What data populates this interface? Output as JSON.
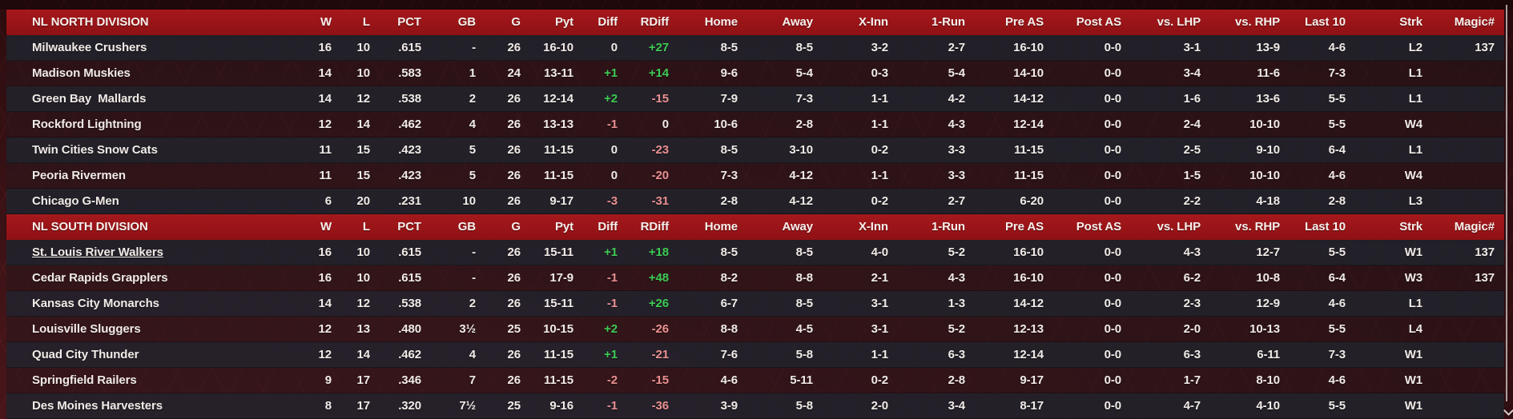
{
  "colors": {
    "accent_light": "#a6181c",
    "accent_dark": "#8e1114",
    "positive": "#3ecb55",
    "negative": "#ea9090",
    "text": "#f1ebe7"
  },
  "table": {
    "columns": [
      {
        "key": "w",
        "label": "W"
      },
      {
        "key": "l",
        "label": "L"
      },
      {
        "key": "pct",
        "label": "PCT"
      },
      {
        "key": "gb",
        "label": "GB"
      },
      {
        "key": "g",
        "label": "G"
      },
      {
        "key": "pyt",
        "label": "Pyt"
      },
      {
        "key": "diff",
        "label": "Diff"
      },
      {
        "key": "rdiff",
        "label": "RDiff"
      },
      {
        "key": "home",
        "label": "Home"
      },
      {
        "key": "away",
        "label": "Away"
      },
      {
        "key": "xinn",
        "label": "X-Inn"
      },
      {
        "key": "onerun",
        "label": "1-Run"
      },
      {
        "key": "preas",
        "label": "Pre AS"
      },
      {
        "key": "postas",
        "label": "Post AS"
      },
      {
        "key": "vslhp",
        "label": "vs. LHP"
      },
      {
        "key": "vsrhp",
        "label": "vs. RHP"
      },
      {
        "key": "last10",
        "label": "Last 10"
      },
      {
        "key": "strk",
        "label": "Strk"
      },
      {
        "key": "magic",
        "label": "Magic#"
      }
    ],
    "divisions": [
      {
        "name": "NL NORTH DIVISION",
        "teams": [
          {
            "name": "Milwaukee Crushers",
            "values": [
              "16",
              "10",
              ".615",
              "-",
              "26",
              "16-10",
              "0",
              "+27",
              "8-5",
              "8-5",
              "3-2",
              "2-7",
              "16-10",
              "0-0",
              "3-1",
              "13-9",
              "4-6",
              "L2",
              "137"
            ]
          },
          {
            "name": "Madison Muskies",
            "values": [
              "14",
              "10",
              ".583",
              "1",
              "24",
              "13-11",
              "+1",
              "+14",
              "9-6",
              "5-4",
              "0-3",
              "5-4",
              "14-10",
              "0-0",
              "3-4",
              "11-6",
              "7-3",
              "L1",
              ""
            ]
          },
          {
            "name": "Green Bay  Mallards",
            "values": [
              "14",
              "12",
              ".538",
              "2",
              "26",
              "12-14",
              "+2",
              "-15",
              "7-9",
              "7-3",
              "1-1",
              "4-2",
              "14-12",
              "0-0",
              "1-6",
              "13-6",
              "5-5",
              "L1",
              ""
            ]
          },
          {
            "name": "Rockford Lightning",
            "values": [
              "12",
              "14",
              ".462",
              "4",
              "26",
              "13-13",
              "-1",
              "0",
              "10-6",
              "2-8",
              "1-1",
              "4-3",
              "12-14",
              "0-0",
              "2-4",
              "10-10",
              "5-5",
              "W4",
              ""
            ]
          },
          {
            "name": "Twin Cities Snow Cats",
            "values": [
              "11",
              "15",
              ".423",
              "5",
              "26",
              "11-15",
              "0",
              "-23",
              "8-5",
              "3-10",
              "0-2",
              "3-3",
              "11-15",
              "0-0",
              "2-5",
              "9-10",
              "6-4",
              "L1",
              ""
            ]
          },
          {
            "name": "Peoria Rivermen",
            "values": [
              "11",
              "15",
              ".423",
              "5",
              "26",
              "11-15",
              "0",
              "-20",
              "7-3",
              "4-12",
              "1-1",
              "3-3",
              "11-15",
              "0-0",
              "1-5",
              "10-10",
              "4-6",
              "W4",
              ""
            ]
          },
          {
            "name": "Chicago G-Men",
            "values": [
              "6",
              "20",
              ".231",
              "10",
              "26",
              "9-17",
              "-3",
              "-31",
              "2-8",
              "4-12",
              "0-2",
              "2-7",
              "6-20",
              "0-0",
              "2-2",
              "4-18",
              "2-8",
              "L3",
              ""
            ]
          }
        ]
      },
      {
        "name": "NL SOUTH DIVISION",
        "teams": [
          {
            "name": "St. Louis River Walkers",
            "highlight": true,
            "values": [
              "16",
              "10",
              ".615",
              "-",
              "26",
              "15-11",
              "+1",
              "+18",
              "8-5",
              "8-5",
              "4-0",
              "5-2",
              "16-10",
              "0-0",
              "4-3",
              "12-7",
              "5-5",
              "W1",
              "137"
            ]
          },
          {
            "name": "Cedar Rapids Grapplers",
            "values": [
              "16",
              "10",
              ".615",
              "-",
              "26",
              "17-9",
              "-1",
              "+48",
              "8-2",
              "8-8",
              "2-1",
              "4-3",
              "16-10",
              "0-0",
              "6-2",
              "10-8",
              "6-4",
              "W3",
              "137"
            ]
          },
          {
            "name": "Kansas City Monarchs",
            "values": [
              "14",
              "12",
              ".538",
              "2",
              "26",
              "15-11",
              "-1",
              "+26",
              "6-7",
              "8-5",
              "3-1",
              "1-3",
              "14-12",
              "0-0",
              "2-3",
              "12-9",
              "4-6",
              "L1",
              ""
            ]
          },
          {
            "name": "Louisville Sluggers",
            "values": [
              "12",
              "13",
              ".480",
              "3½",
              "25",
              "10-15",
              "+2",
              "-26",
              "8-8",
              "4-5",
              "3-1",
              "5-2",
              "12-13",
              "0-0",
              "2-0",
              "10-13",
              "5-5",
              "L4",
              ""
            ]
          },
          {
            "name": "Quad City Thunder",
            "values": [
              "12",
              "14",
              ".462",
              "4",
              "26",
              "11-15",
              "+1",
              "-21",
              "7-6",
              "5-8",
              "1-1",
              "6-3",
              "12-14",
              "0-0",
              "6-3",
              "6-11",
              "7-3",
              "W1",
              ""
            ]
          },
          {
            "name": "Springfield Railers",
            "values": [
              "9",
              "17",
              ".346",
              "7",
              "26",
              "11-15",
              "-2",
              "-15",
              "4-6",
              "5-11",
              "0-2",
              "2-8",
              "9-17",
              "0-0",
              "1-7",
              "8-10",
              "4-6",
              "W1",
              ""
            ]
          },
          {
            "name": "Des Moines Harvesters",
            "values": [
              "8",
              "17",
              ".320",
              "7½",
              "25",
              "9-16",
              "-1",
              "-36",
              "3-9",
              "5-8",
              "2-0",
              "3-4",
              "8-17",
              "0-0",
              "4-7",
              "4-10",
              "5-5",
              "W1",
              ""
            ]
          }
        ]
      }
    ]
  }
}
